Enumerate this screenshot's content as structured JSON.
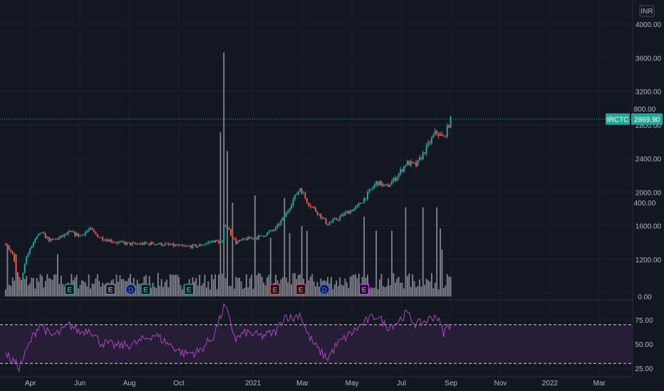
{
  "currency_label": "INR",
  "symbol_label": "IRCTC",
  "last_price_label": "2869.90",
  "colors": {
    "background": "#131722",
    "grid": "#1e222d",
    "up": "#26a69a",
    "down": "#ef5350",
    "volume": "#9598a1",
    "rsi_line": "#ab47bc",
    "rsi_band": "#2a1e3a",
    "earnings": "#26a69a",
    "earnings_neutral": "#9598a1",
    "earnings_negative": "#ef5350",
    "earnings_future": "#e040fb",
    "dividend": "#2962ff"
  },
  "chart_data": {
    "type": "candlestick",
    "price_axis": {
      "ylim": [
        800,
        4000
      ],
      "ticks": [
        "4000.00",
        "3600.00",
        "3200.00",
        "2800.00",
        "2400.00",
        "2000.00",
        "1600.00",
        "1200.00"
      ]
    },
    "volume_axis": {
      "ylim": [
        0,
        1000
      ],
      "ticks": [
        "800.00",
        "400.00",
        "0.00"
      ]
    },
    "rsi_axis": {
      "ylim": [
        25,
        90
      ],
      "ticks": [
        "75.00",
        "50.00",
        "25.00"
      ],
      "band": [
        30,
        70
      ]
    },
    "time_axis": {
      "labels": [
        {
          "t": 1,
          "label": "Apr"
        },
        {
          "t": 3,
          "label": "Jun"
        },
        {
          "t": 5,
          "label": "Aug"
        },
        {
          "t": 7,
          "label": "Oct"
        },
        {
          "t": 10,
          "label": "2021"
        },
        {
          "t": 12,
          "label": "Mar"
        },
        {
          "t": 14,
          "label": "May"
        },
        {
          "t": 16,
          "label": "Jul"
        },
        {
          "t": 18,
          "label": "Sep"
        },
        {
          "t": 20,
          "label": "Nov"
        },
        {
          "t": 22,
          "label": "2022"
        },
        {
          "t": 24,
          "label": "Mar"
        }
      ]
    },
    "price_path": [
      [
        0,
        1380
      ],
      [
        0.3,
        1250
      ],
      [
        0.55,
        820
      ],
      [
        0.8,
        1200
      ],
      [
        1.1,
        1390
      ],
      [
        1.4,
        1520
      ],
      [
        1.8,
        1420
      ],
      [
        2.2,
        1460
      ],
      [
        2.6,
        1520
      ],
      [
        3.0,
        1480
      ],
      [
        3.4,
        1560
      ],
      [
        3.8,
        1460
      ],
      [
        4.5,
        1400
      ],
      [
        5.2,
        1380
      ],
      [
        6.0,
        1390
      ],
      [
        6.6,
        1370
      ],
      [
        7.2,
        1350
      ],
      [
        7.8,
        1360
      ],
      [
        8.4,
        1420
      ],
      [
        8.75,
        1400
      ],
      [
        8.85,
        1640
      ],
      [
        9.0,
        1560
      ],
      [
        9.3,
        1400
      ],
      [
        9.7,
        1440
      ],
      [
        10.3,
        1470
      ],
      [
        10.9,
        1560
      ],
      [
        11.3,
        1720
      ],
      [
        11.6,
        1900
      ],
      [
        11.9,
        2050
      ],
      [
        12.2,
        1880
      ],
      [
        12.6,
        1760
      ],
      [
        13.0,
        1620
      ],
      [
        13.4,
        1680
      ],
      [
        13.8,
        1760
      ],
      [
        14.2,
        1820
      ],
      [
        14.6,
        1960
      ],
      [
        15.0,
        2120
      ],
      [
        15.4,
        2060
      ],
      [
        15.8,
        2180
      ],
      [
        16.2,
        2350
      ],
      [
        16.6,
        2320
      ],
      [
        17.0,
        2520
      ],
      [
        17.4,
        2720
      ],
      [
        17.7,
        2640
      ],
      [
        18.0,
        2870
      ]
    ],
    "volume_spikes": [
      {
        "t": 8.8,
        "v": 1040
      },
      {
        "t": 8.65,
        "v": 700
      },
      {
        "t": 8.95,
        "v": 620
      },
      {
        "t": 9.15,
        "v": 400
      },
      {
        "t": 10.05,
        "v": 430
      },
      {
        "t": 10.7,
        "v": 250
      },
      {
        "t": 11.3,
        "v": 420
      },
      {
        "t": 11.5,
        "v": 270
      },
      {
        "t": 11.95,
        "v": 300
      },
      {
        "t": 12.2,
        "v": 280
      },
      {
        "t": 14.5,
        "v": 340
      },
      {
        "t": 15.0,
        "v": 280
      },
      {
        "t": 15.6,
        "v": 280
      },
      {
        "t": 16.2,
        "v": 380
      },
      {
        "t": 16.85,
        "v": 380
      },
      {
        "t": 17.4,
        "v": 380
      },
      {
        "t": 17.55,
        "v": 290
      },
      {
        "t": 17.65,
        "v": 200
      },
      {
        "t": 0.05,
        "v": 220
      },
      {
        "t": 0.45,
        "v": 180
      },
      {
        "t": 2.1,
        "v": 180
      }
    ],
    "rsi_path": [
      [
        0,
        40
      ],
      [
        0.55,
        26
      ],
      [
        1.1,
        58
      ],
      [
        1.4,
        72
      ],
      [
        1.8,
        58
      ],
      [
        2.2,
        62
      ],
      [
        2.6,
        70
      ],
      [
        3.0,
        62
      ],
      [
        3.4,
        66
      ],
      [
        3.8,
        52
      ],
      [
        4.5,
        48
      ],
      [
        5.2,
        50
      ],
      [
        6.0,
        60
      ],
      [
        6.6,
        50
      ],
      [
        7.2,
        40
      ],
      [
        7.8,
        42
      ],
      [
        8.4,
        58
      ],
      [
        8.85,
        90
      ],
      [
        9.3,
        55
      ],
      [
        9.7,
        62
      ],
      [
        10.3,
        58
      ],
      [
        10.9,
        62
      ],
      [
        11.3,
        80
      ],
      [
        11.6,
        76
      ],
      [
        11.9,
        82
      ],
      [
        12.2,
        60
      ],
      [
        12.6,
        45
      ],
      [
        13.0,
        35
      ],
      [
        13.4,
        50
      ],
      [
        13.8,
        58
      ],
      [
        14.2,
        66
      ],
      [
        14.6,
        74
      ],
      [
        15.0,
        80
      ],
      [
        15.4,
        68
      ],
      [
        15.8,
        72
      ],
      [
        16.2,
        82
      ],
      [
        16.6,
        70
      ],
      [
        17.0,
        74
      ],
      [
        17.4,
        80
      ],
      [
        17.7,
        62
      ],
      [
        18.0,
        72
      ]
    ],
    "events": [
      {
        "t": 5.4,
        "kind": "E",
        "tone": "earnings"
      },
      {
        "t": 8.7,
        "kind": "E",
        "tone": "earnings_neutral"
      },
      {
        "t": 10.35,
        "kind": "D",
        "tone": "dividend"
      },
      {
        "t": 11.55,
        "kind": "E",
        "tone": "earnings"
      },
      {
        "t": 15.05,
        "kind": "E",
        "tone": "earnings"
      },
      {
        "t": 22.0,
        "kind": "E",
        "tone": "earnings_negative"
      },
      {
        "t": 24.1,
        "kind": "E",
        "tone": "earnings_negative"
      },
      {
        "t": 26.0,
        "kind": "D",
        "tone": "dividend"
      },
      {
        "t": 29.2,
        "kind": "E",
        "tone": "earnings_future"
      }
    ]
  }
}
